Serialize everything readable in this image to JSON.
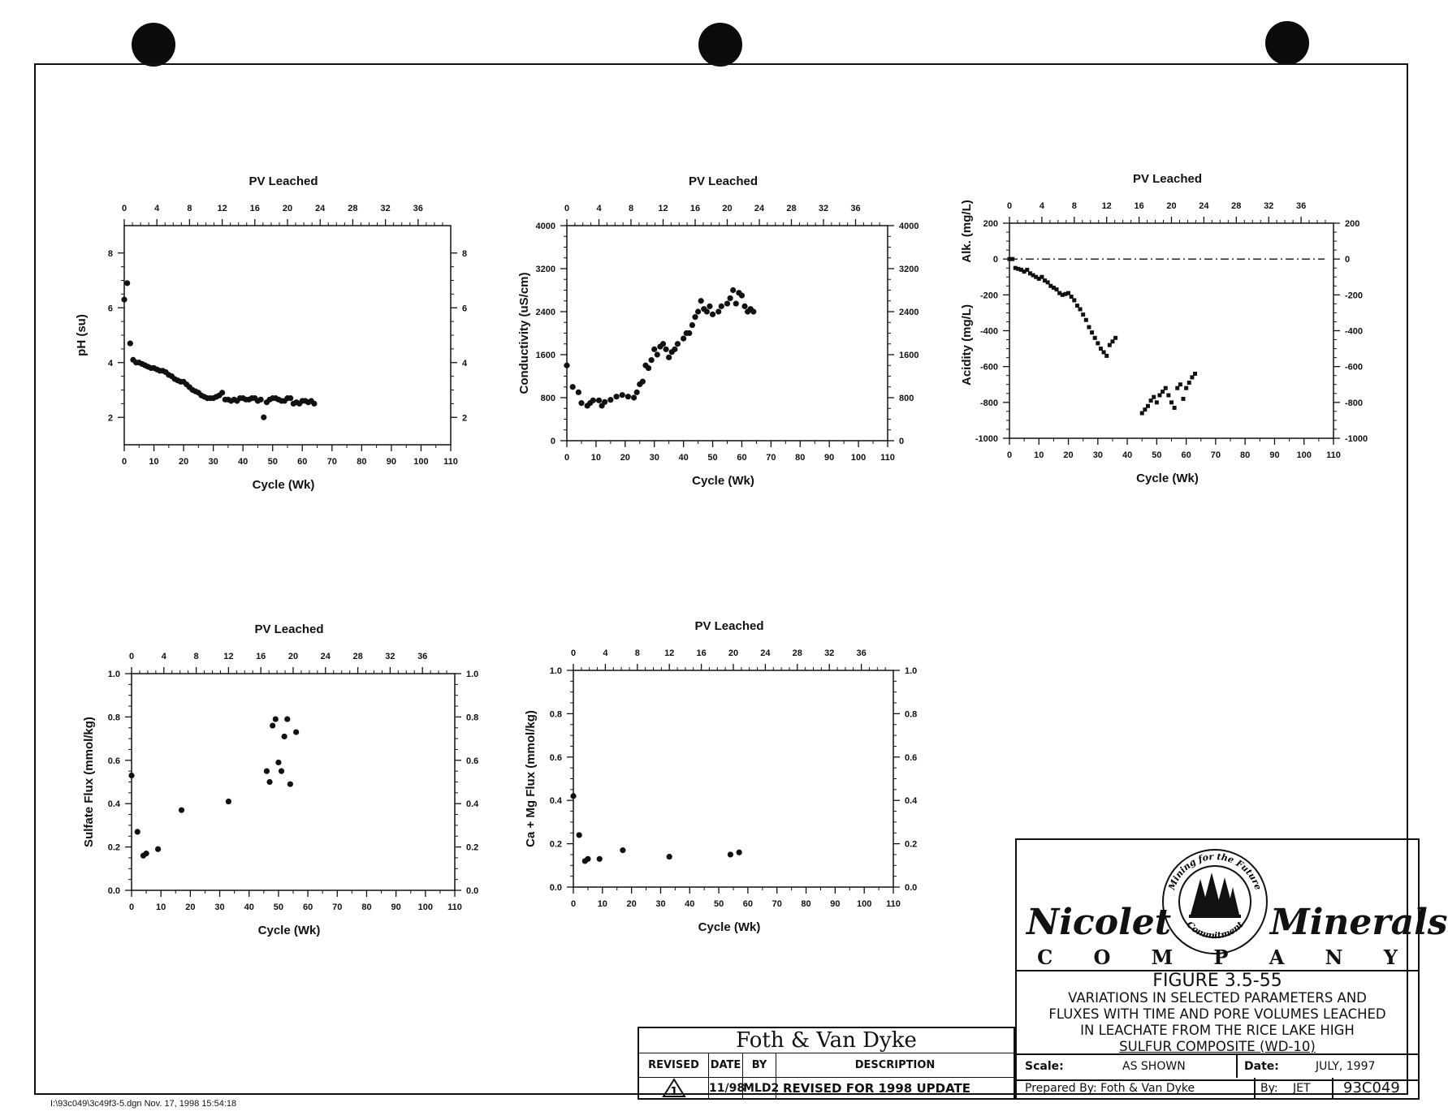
{
  "chart_data": [
    {
      "type": "scatter",
      "title": "PV Leached",
      "xlabel": "Cycle (Wk)",
      "ylabel": "pH (su)",
      "xlim": [
        0,
        110
      ],
      "ylim": [
        1,
        9
      ],
      "x_ticks": [
        0,
        10,
        20,
        30,
        40,
        50,
        60,
        70,
        80,
        90,
        100,
        110
      ],
      "y_ticks": [
        2,
        4,
        6,
        8
      ],
      "top_xlim": [
        0,
        40
      ],
      "top_ticks": [
        0,
        4,
        8,
        12,
        16,
        20,
        24,
        28,
        32,
        36
      ],
      "right_ticks": [
        2,
        4,
        6,
        8
      ],
      "series": [
        {
          "marker": "dot",
          "points": [
            [
              0,
              6.3
            ],
            [
              1,
              6.9
            ],
            [
              2,
              4.7
            ],
            [
              3,
              4.1
            ],
            [
              4,
              4.0
            ],
            [
              5,
              4.0
            ],
            [
              6,
              3.95
            ],
            [
              7,
              3.9
            ],
            [
              8,
              3.85
            ],
            [
              9,
              3.8
            ],
            [
              10,
              3.8
            ],
            [
              11,
              3.75
            ],
            [
              12,
              3.7
            ],
            [
              13,
              3.7
            ],
            [
              14,
              3.65
            ],
            [
              15,
              3.55
            ],
            [
              16,
              3.5
            ],
            [
              17,
              3.4
            ],
            [
              18,
              3.35
            ],
            [
              19,
              3.3
            ],
            [
              20,
              3.3
            ],
            [
              21,
              3.2
            ],
            [
              22,
              3.1
            ],
            [
              23,
              3.0
            ],
            [
              24,
              2.95
            ],
            [
              25,
              2.9
            ],
            [
              26,
              2.8
            ],
            [
              27,
              2.75
            ],
            [
              28,
              2.7
            ],
            [
              29,
              2.7
            ],
            [
              30,
              2.7
            ],
            [
              31,
              2.75
            ],
            [
              32,
              2.8
            ],
            [
              33,
              2.9
            ],
            [
              34,
              2.65
            ],
            [
              35,
              2.65
            ],
            [
              36,
              2.6
            ],
            [
              37,
              2.65
            ],
            [
              38,
              2.6
            ],
            [
              39,
              2.7
            ],
            [
              40,
              2.7
            ],
            [
              41,
              2.65
            ],
            [
              42,
              2.65
            ],
            [
              43,
              2.7
            ],
            [
              44,
              2.7
            ],
            [
              45,
              2.6
            ],
            [
              46,
              2.65
            ],
            [
              47,
              2.0
            ],
            [
              48,
              2.55
            ],
            [
              49,
              2.65
            ],
            [
              50,
              2.7
            ],
            [
              51,
              2.7
            ],
            [
              52,
              2.65
            ],
            [
              53,
              2.6
            ],
            [
              54,
              2.6
            ],
            [
              55,
              2.7
            ],
            [
              56,
              2.7
            ],
            [
              57,
              2.5
            ],
            [
              58,
              2.55
            ],
            [
              59,
              2.5
            ],
            [
              60,
              2.6
            ],
            [
              61,
              2.6
            ],
            [
              62,
              2.55
            ],
            [
              63,
              2.6
            ],
            [
              64,
              2.5
            ]
          ]
        }
      ]
    },
    {
      "type": "scatter",
      "title": "PV Leached",
      "xlabel": "Cycle (Wk)",
      "ylabel": "Conductivity (uS/cm)",
      "xlim": [
        0,
        110
      ],
      "ylim": [
        0,
        4000
      ],
      "x_ticks": [
        0,
        10,
        20,
        30,
        40,
        50,
        60,
        70,
        80,
        90,
        100,
        110
      ],
      "y_ticks": [
        0,
        800,
        1600,
        2400,
        3200,
        4000
      ],
      "top_xlim": [
        0,
        40
      ],
      "top_ticks": [
        0,
        4,
        8,
        12,
        16,
        20,
        24,
        28,
        32,
        36
      ],
      "right_ticks": [
        0,
        800,
        1600,
        2400,
        3200,
        4000
      ],
      "series": [
        {
          "marker": "dot",
          "points": [
            [
              0,
              1400
            ],
            [
              2,
              1000
            ],
            [
              4,
              900
            ],
            [
              5,
              700
            ],
            [
              7,
              650
            ],
            [
              8,
              700
            ],
            [
              9,
              750
            ],
            [
              11,
              750
            ],
            [
              12,
              650
            ],
            [
              13,
              720
            ],
            [
              15,
              760
            ],
            [
              17,
              820
            ],
            [
              19,
              850
            ],
            [
              21,
              820
            ],
            [
              23,
              800
            ],
            [
              24,
              900
            ],
            [
              25,
              1050
            ],
            [
              26,
              1100
            ],
            [
              27,
              1400
            ],
            [
              28,
              1350
            ],
            [
              29,
              1500
            ],
            [
              30,
              1700
            ],
            [
              31,
              1600
            ],
            [
              32,
              1750
            ],
            [
              33,
              1800
            ],
            [
              34,
              1700
            ],
            [
              35,
              1550
            ],
            [
              36,
              1650
            ],
            [
              37,
              1700
            ],
            [
              38,
              1800
            ],
            [
              40,
              1900
            ],
            [
              41,
              2000
            ],
            [
              42,
              2000
            ],
            [
              43,
              2150
            ],
            [
              44,
              2300
            ],
            [
              45,
              2400
            ],
            [
              46,
              2600
            ],
            [
              47,
              2450
            ],
            [
              48,
              2400
            ],
            [
              49,
              2500
            ],
            [
              50,
              2350
            ],
            [
              52,
              2400
            ],
            [
              53,
              2500
            ],
            [
              55,
              2550
            ],
            [
              56,
              2650
            ],
            [
              57,
              2800
            ],
            [
              58,
              2550
            ],
            [
              59,
              2750
            ],
            [
              60,
              2700
            ],
            [
              61,
              2500
            ],
            [
              62,
              2400
            ],
            [
              63,
              2450
            ],
            [
              64,
              2400
            ]
          ]
        }
      ]
    },
    {
      "type": "scatter",
      "title": "PV Leached",
      "xlabel": "Cycle (Wk)",
      "ylabel": "Acidity (mg/L)",
      "ylabel2": "Alk. (mg/L)",
      "xlim": [
        0,
        110
      ],
      "ylim": [
        -1000,
        200
      ],
      "x_ticks": [
        0,
        10,
        20,
        30,
        40,
        50,
        60,
        70,
        80,
        90,
        100,
        110
      ],
      "y_ticks": [
        -1000,
        -800,
        -600,
        -400,
        -200,
        0,
        200
      ],
      "top_xlim": [
        0,
        40
      ],
      "top_ticks": [
        0,
        4,
        8,
        12,
        16,
        20,
        24,
        28,
        32,
        36
      ],
      "right_ticks": [
        -1000,
        -800,
        -600,
        -400,
        -200,
        0,
        200
      ],
      "alkalinity_line": {
        "y": 0,
        "from_x": 0,
        "to_x": 107
      },
      "series": [
        {
          "marker": "square",
          "points": [
            [
              0,
              0
            ],
            [
              1,
              0
            ],
            [
              2,
              -50
            ],
            [
              3,
              -55
            ],
            [
              4,
              -60
            ],
            [
              5,
              -70
            ],
            [
              6,
              -60
            ],
            [
              7,
              -80
            ],
            [
              8,
              -90
            ],
            [
              9,
              -100
            ],
            [
              10,
              -110
            ],
            [
              11,
              -100
            ],
            [
              12,
              -120
            ],
            [
              13,
              -130
            ],
            [
              14,
              -150
            ],
            [
              15,
              -160
            ],
            [
              16,
              -170
            ],
            [
              17,
              -190
            ],
            [
              18,
              -200
            ],
            [
              19,
              -195
            ],
            [
              20,
              -190
            ],
            [
              21,
              -210
            ],
            [
              22,
              -230
            ],
            [
              23,
              -260
            ],
            [
              24,
              -280
            ],
            [
              25,
              -310
            ],
            [
              26,
              -340
            ],
            [
              27,
              -380
            ],
            [
              28,
              -410
            ],
            [
              29,
              -440
            ],
            [
              30,
              -470
            ],
            [
              31,
              -500
            ],
            [
              32,
              -520
            ],
            [
              33,
              -540
            ],
            [
              34,
              -480
            ],
            [
              35,
              -460
            ],
            [
              36,
              -440
            ]
          ]
        },
        {
          "marker": "square",
          "points": [
            [
              45,
              -860
            ],
            [
              46,
              -840
            ],
            [
              47,
              -820
            ],
            [
              48,
              -790
            ],
            [
              49,
              -770
            ],
            [
              50,
              -800
            ],
            [
              51,
              -760
            ],
            [
              52,
              -740
            ],
            [
              53,
              -720
            ],
            [
              54,
              -760
            ],
            [
              55,
              -800
            ],
            [
              56,
              -830
            ],
            [
              57,
              -720
            ],
            [
              58,
              -700
            ],
            [
              59,
              -780
            ],
            [
              60,
              -720
            ],
            [
              61,
              -690
            ],
            [
              62,
              -660
            ],
            [
              63,
              -640
            ]
          ]
        }
      ]
    },
    {
      "type": "scatter",
      "title": "PV Leached",
      "xlabel": "Cycle (Wk)",
      "ylabel": "Sulfate Flux (mmol/kg)",
      "xlim": [
        0,
        110
      ],
      "ylim": [
        0,
        1.0
      ],
      "x_ticks": [
        0,
        10,
        20,
        30,
        40,
        50,
        60,
        70,
        80,
        90,
        100,
        110
      ],
      "y_ticks": [
        0.0,
        0.2,
        0.4,
        0.6,
        0.8,
        1.0
      ],
      "top_xlim": [
        0,
        40
      ],
      "top_ticks": [
        0,
        4,
        8,
        12,
        16,
        20,
        24,
        28,
        32,
        36
      ],
      "right_ticks": [
        0.0,
        0.2,
        0.4,
        0.6,
        0.8,
        1.0
      ],
      "series": [
        {
          "marker": "dot",
          "points": [
            [
              0,
              0.53
            ],
            [
              2,
              0.27
            ],
            [
              4,
              0.16
            ],
            [
              5,
              0.17
            ],
            [
              9,
              0.19
            ],
            [
              17,
              0.37
            ],
            [
              33,
              0.41
            ],
            [
              46,
              0.55
            ],
            [
              47,
              0.5
            ],
            [
              48,
              0.76
            ],
            [
              49,
              0.79
            ],
            [
              50,
              0.59
            ],
            [
              51,
              0.55
            ],
            [
              52,
              0.71
            ],
            [
              53,
              0.79
            ],
            [
              54,
              0.49
            ],
            [
              56,
              0.73
            ]
          ]
        }
      ]
    },
    {
      "type": "scatter",
      "title": "PV Leached",
      "xlabel": "Cycle (Wk)",
      "ylabel": "Ca + Mg Flux (mmol/kg)",
      "xlim": [
        0,
        110
      ],
      "ylim": [
        0,
        1.0
      ],
      "x_ticks": [
        0,
        10,
        20,
        30,
        40,
        50,
        60,
        70,
        80,
        90,
        100,
        110
      ],
      "y_ticks": [
        0.0,
        0.2,
        0.4,
        0.6,
        0.8,
        1.0
      ],
      "top_xlim": [
        0,
        40
      ],
      "top_ticks": [
        0,
        4,
        8,
        12,
        16,
        20,
        24,
        28,
        32,
        36
      ],
      "right_ticks": [
        0.0,
        0.2,
        0.4,
        0.6,
        0.8,
        1.0
      ],
      "series": [
        {
          "marker": "dot",
          "points": [
            [
              0,
              0.42
            ],
            [
              2,
              0.24
            ],
            [
              4,
              0.12
            ],
            [
              5,
              0.13
            ],
            [
              9,
              0.13
            ],
            [
              17,
              0.17
            ],
            [
              33,
              0.14
            ],
            [
              54,
              0.15
            ],
            [
              57,
              0.16
            ]
          ]
        }
      ]
    }
  ],
  "title_block": {
    "company_name_left": "Nicolet",
    "company_name_right": "Minerals",
    "company_letters": [
      "C",
      "O",
      "M",
      "P",
      "A",
      "N",
      "Y"
    ],
    "seal_top_text": "Mining for the Future",
    "seal_bottom_text": "Commitment",
    "figure_number": "FIGURE 3.5-55",
    "figure_caption_lines": [
      "VARIATIONS IN SELECTED PARAMETERS AND",
      "FLUXES WITH TIME AND PORE VOLUMES LEACHED",
      "IN LEACHATE FROM THE RICE LAKE HIGH",
      "SULFUR COMPOSITE (WD-10)"
    ],
    "scale_label": "Scale:",
    "scale_value": "AS SHOWN",
    "date_label": "Date:",
    "date_value": "JULY, 1997",
    "prepared_label": "Prepared By: Foth & Van Dyke",
    "by_label": "By:",
    "by_value": "JET",
    "project_number": "93C049"
  },
  "revision_block": {
    "firm": "Foth & Van Dyke",
    "headers": [
      "REVISED",
      "DATE",
      "BY",
      "DESCRIPTION"
    ],
    "row": {
      "revised": "1",
      "date": "11/98",
      "by": "MLD2",
      "description": "REVISED FOR 1998 UPDATE"
    }
  },
  "file_stamp": "I:\\93c049\\3c49f3-5.dgn  Nov. 17, 1998  15:54:18"
}
